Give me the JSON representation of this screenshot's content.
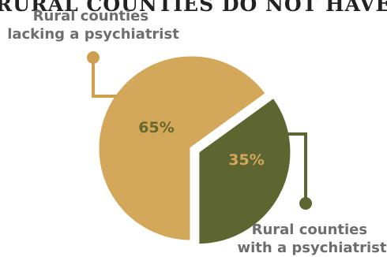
{
  "title": "RURAL COUNTIES DO NOT HAVE",
  "chart_data": {
    "type": "pie",
    "title": "RURAL COUNTIES DO NOT HAVE",
    "slices": [
      {
        "label_lines": [
          "Rural counties",
          "lacking a psychiatrist"
        ],
        "value": 65,
        "value_label": "65%",
        "color": "#d4a85a",
        "text_color": "#66672c"
      },
      {
        "label_lines": [
          "Rural counties",
          "with a psychiatrist"
        ],
        "value": 35,
        "value_label": "35%",
        "color": "#5d6531",
        "text_color": "#d4a85a"
      }
    ],
    "legend": "none",
    "exploded_slice": 1,
    "leader_line_color": "#cf9f50"
  }
}
